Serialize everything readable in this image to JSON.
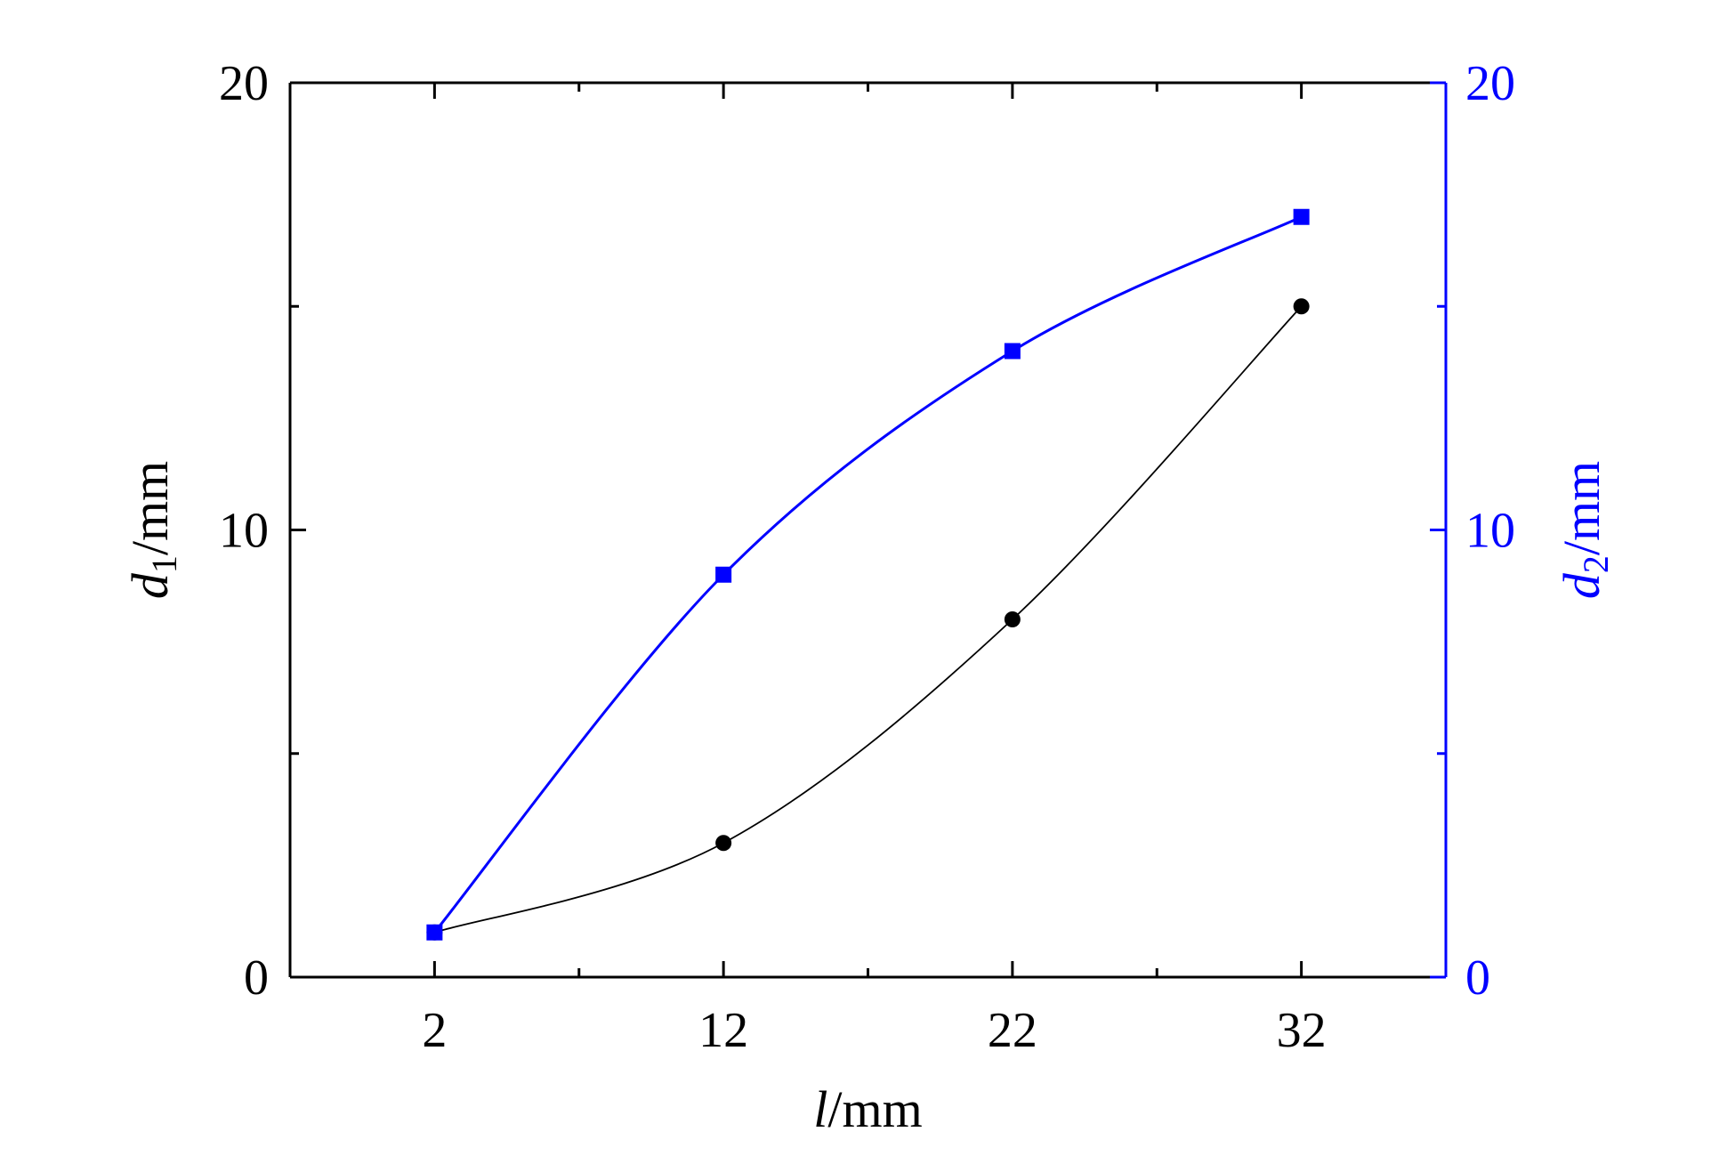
{
  "chart_data": {
    "type": "scatter",
    "x": [
      2,
      12,
      22,
      32
    ],
    "xlabel": {
      "var": "l",
      "unit": "/mm"
    },
    "ylabel_left": {
      "var": "d",
      "sub": "1",
      "unit": "/mm"
    },
    "ylabel_right": {
      "var": "d",
      "sub": "2",
      "unit": "/mm"
    },
    "xlim": [
      -3,
      37
    ],
    "ylim_left": [
      0,
      20
    ],
    "ylim_right": [
      0,
      20
    ],
    "xticks": [
      2,
      12,
      22,
      32
    ],
    "xticks_minor": [
      7,
      17,
      27
    ],
    "yticks_left": [
      0,
      10,
      20
    ],
    "yticks_right": [
      0,
      10,
      20
    ],
    "yticks_minor": [
      5,
      15
    ],
    "tick_labels": {
      "x": [
        "2",
        "12",
        "22",
        "32"
      ],
      "y_left": [
        "0",
        "10",
        "20"
      ],
      "y_right": [
        "0",
        "10",
        "20"
      ]
    },
    "series": [
      {
        "axis": "left",
        "marker": "circle",
        "color": "#000000",
        "values": [
          1,
          3,
          8,
          15
        ],
        "fit": "smooth"
      },
      {
        "axis": "right",
        "marker": "square",
        "color": "#0000ff",
        "values": [
          1,
          9,
          14,
          17
        ],
        "fit": "smooth"
      }
    ],
    "grid": false,
    "legend": "none"
  }
}
